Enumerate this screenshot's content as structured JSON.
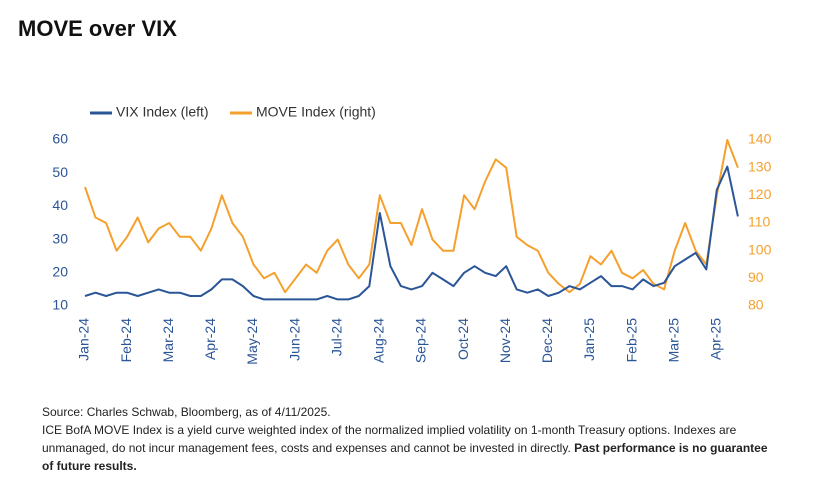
{
  "chart_data": {
    "type": "line",
    "title": "MOVE over VIX",
    "categories": [
      "Jan-24",
      null,
      null,
      null,
      "Feb-24",
      null,
      null,
      null,
      "Mar-24",
      null,
      null,
      null,
      "Apr-24",
      null,
      null,
      null,
      "May-24",
      null,
      null,
      null,
      "Jun-24",
      null,
      null,
      null,
      "Jul-24",
      null,
      null,
      null,
      "Aug-24",
      null,
      null,
      null,
      "Sep-24",
      null,
      null,
      null,
      "Oct-24",
      null,
      null,
      null,
      "Nov-24",
      null,
      null,
      null,
      "Dec-24",
      null,
      null,
      null,
      "Jan-25",
      null,
      null,
      null,
      "Feb-25",
      null,
      null,
      null,
      "Mar-25",
      null,
      null,
      null,
      "Apr-25",
      null,
      null
    ],
    "series": [
      {
        "name": "VIX Index (left)",
        "color": "#2a5597",
        "axis": "y",
        "values": [
          13,
          14,
          13,
          14,
          14,
          13,
          14,
          15,
          14,
          14,
          13,
          13,
          15,
          18,
          18,
          16,
          13,
          12,
          12,
          12,
          12,
          12,
          12,
          13,
          12,
          12,
          13,
          16,
          38,
          22,
          16,
          15,
          16,
          20,
          18,
          16,
          20,
          22,
          20,
          19,
          22,
          15,
          14,
          15,
          13,
          14,
          16,
          15,
          17,
          19,
          16,
          16,
          15,
          18,
          16,
          17,
          22,
          24,
          26,
          21,
          45,
          52,
          37
        ]
      },
      {
        "name": "MOVE Index (right)",
        "color": "#f5a02d",
        "axis": "y2",
        "values": [
          123,
          112,
          110,
          100,
          105,
          112,
          103,
          108,
          110,
          105,
          105,
          100,
          108,
          120,
          110,
          105,
          95,
          90,
          92,
          85,
          90,
          95,
          92,
          100,
          104,
          95,
          90,
          95,
          120,
          110,
          110,
          102,
          115,
          104,
          100,
          100,
          120,
          115,
          125,
          133,
          130,
          105,
          102,
          100,
          92,
          88,
          85,
          88,
          98,
          95,
          100,
          92,
          90,
          93,
          88,
          86,
          100,
          110,
          100,
          95,
          120,
          140,
          130
        ]
      }
    ],
    "ylim": [
      10,
      60
    ],
    "yticks": [
      10,
      20,
      30,
      40,
      50,
      60
    ],
    "y2lim": [
      80,
      140
    ],
    "y2ticks": [
      80,
      90,
      100,
      110,
      120,
      130,
      140
    ],
    "legend": "top-left",
    "source": "Source: Charles Schwab, Bloomberg, as of 4/11/2025.",
    "note": "ICE BofA MOVE Index is a yield curve weighted index of the normalized implied volatility on 1-month Treasury options. Indexes are unmanaged, do not incur management fees, costs and expenses and cannot be invested in directly.",
    "note_bold": "Past performance is no guarantee of future results."
  }
}
